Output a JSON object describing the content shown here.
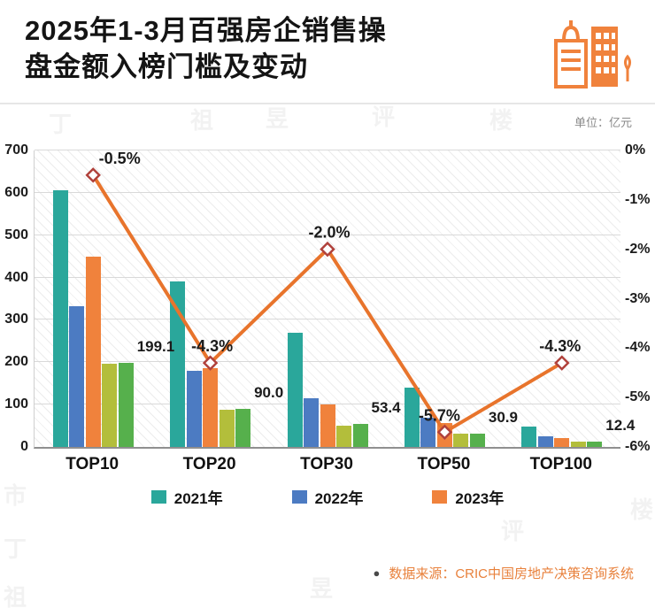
{
  "header": {
    "title_line1": "2025年1-3月百强房企销售操",
    "title_line2": "盘金额入榜门槛及变动",
    "unit_label": "单位：亿元"
  },
  "footer": {
    "source_bullet": "●",
    "source_text": "数据来源：CRIC中国房地产决策咨询系统"
  },
  "watermark_text": "丁祖昱评楼市",
  "colors": {
    "accent_orange": "#f0823c",
    "line_orange": "#e8742c",
    "marker_stroke": "#b0413b",
    "label_dark": "#1a1a1a"
  },
  "chart_data": {
    "type": "bar",
    "title": "2025年1-3月百强房企销售操盘金额入榜门槛及变动",
    "unit": "亿元",
    "categories": [
      "TOP10",
      "TOP20",
      "TOP30",
      "TOP50",
      "TOP100"
    ],
    "bar_series": [
      {
        "label": "2021年",
        "color": "#2aa79b",
        "in_legend": true,
        "values": [
          605,
          390,
          270,
          140,
          48
        ]
      },
      {
        "label": "2022年",
        "color": "#4c7bc2",
        "in_legend": true,
        "values": [
          332,
          180,
          115,
          69,
          25
        ]
      },
      {
        "label": "2023年",
        "color": "#f0823c",
        "in_legend": true,
        "values": [
          450,
          186,
          100,
          56,
          21
        ]
      },
      {
        "label": "",
        "color": "#b3be3b",
        "in_legend": false,
        "values": [
          196,
          88,
          50,
          31,
          12.5
        ]
      },
      {
        "label": "",
        "color": "#56b04c",
        "in_legend": false,
        "values": [
          199.1,
          90.0,
          53.4,
          30.9,
          12.4
        ]
      }
    ],
    "bar_value_labels": [
      "199.1",
      "90.0",
      "53.4",
      "30.9",
      "12.4"
    ],
    "line_overlay": {
      "color": "#e8742c",
      "marker": "diamond",
      "values_pct": [
        -0.5,
        -4.3,
        -2.0,
        -5.7,
        -4.3
      ],
      "labels": [
        "-0.5%",
        "-4.3%",
        "-2.0%",
        "-5.7%",
        "-4.3%"
      ]
    },
    "left_axis": {
      "min": 0,
      "max": 700,
      "ticks": [
        "700",
        "600",
        "500",
        "400",
        "300",
        "200",
        "100",
        "0"
      ]
    },
    "right_axis": {
      "min": -6,
      "max": 0,
      "ticks": [
        "0%",
        "-1%",
        "-2%",
        "-3%",
        "-4%",
        "-5%",
        "-6%"
      ]
    },
    "grid": true,
    "legend_position": "bottom"
  }
}
